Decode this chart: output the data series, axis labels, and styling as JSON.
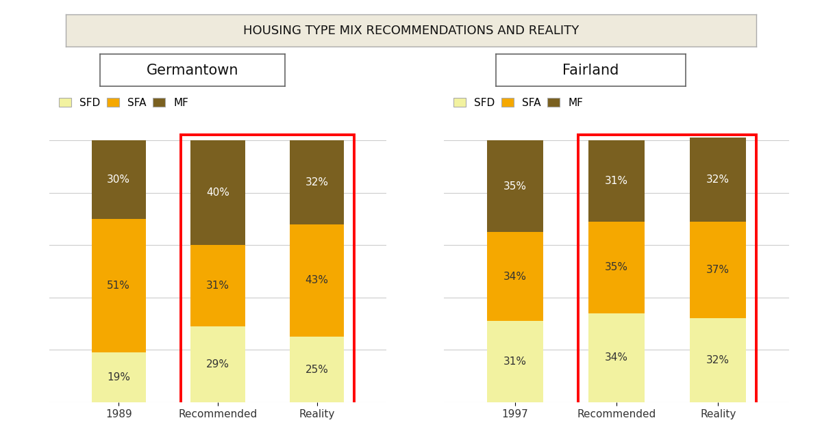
{
  "title": "HOUSING TYPE MIX RECOMMENDATIONS AND REALITY",
  "title_bg": "#eeeadc",
  "title_border": "#aaaaaa",
  "background": "#ffffff",
  "groups": [
    {
      "label": "Germantown",
      "bars": [
        {
          "x_label": "1989",
          "SFD": 19,
          "SFA": 51,
          "MF": 30
        },
        {
          "x_label": "Recommended",
          "SFD": 29,
          "SFA": 31,
          "MF": 40
        },
        {
          "x_label": "Reality",
          "SFD": 25,
          "SFA": 43,
          "MF": 32
        }
      ],
      "highlight": [
        1,
        2
      ]
    },
    {
      "label": "Fairland",
      "bars": [
        {
          "x_label": "1997",
          "SFD": 31,
          "SFA": 34,
          "MF": 35
        },
        {
          "x_label": "Recommended",
          "SFD": 34,
          "SFA": 35,
          "MF": 31
        },
        {
          "x_label": "Reality",
          "SFD": 32,
          "SFA": 37,
          "MF": 32
        }
      ],
      "highlight": [
        1,
        2
      ]
    }
  ],
  "colors": {
    "SFD": "#f2f2a0",
    "SFA": "#f5a800",
    "MF": "#7a6020"
  },
  "bar_width": 0.55,
  "highlight_color": "#ff0000",
  "highlight_linewidth": 2.8,
  "grid_color": "#cccccc",
  "tick_fontsize": 11,
  "title_fontsize": 13,
  "group_title_fontsize": 15,
  "legend_fontsize": 11,
  "pct_fontsize": 11,
  "mf_text_color": "#ffffff",
  "sfd_sfa_text_color": "#333333"
}
